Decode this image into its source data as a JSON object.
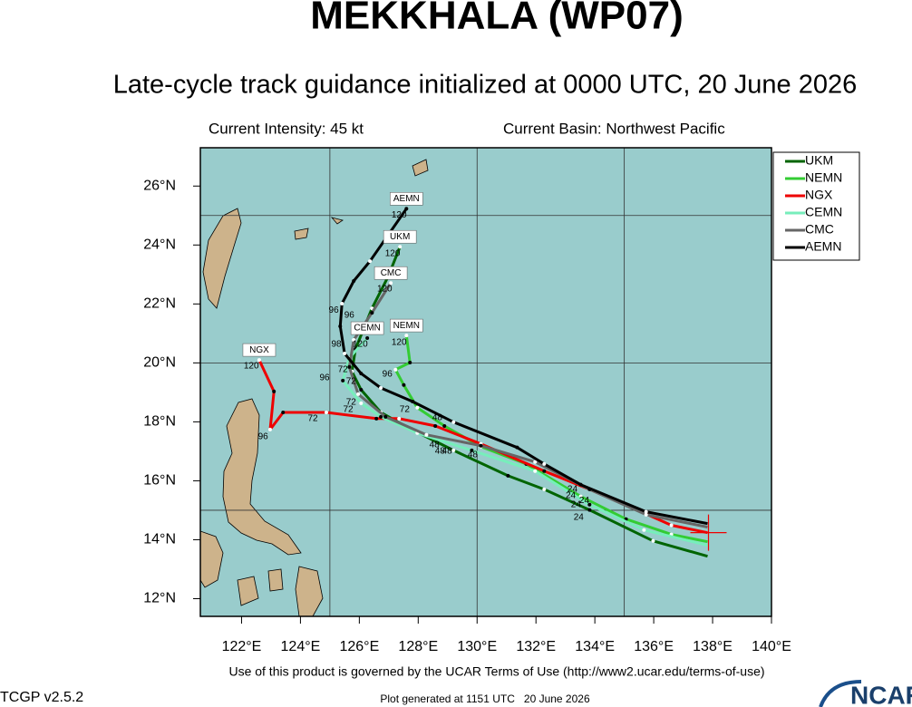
{
  "header": {
    "title": "MEKKHALA (WP07)",
    "subtitle": "Late-cycle track guidance initialized at 0000 UTC, 20 June 2026",
    "intensity": "Current Intensity: 45 kt",
    "basin": "Current Basin: Northwest Pacific"
  },
  "map": {
    "lonlim": [
      120.6,
      140
    ],
    "latlim": [
      11.4,
      27.3
    ],
    "lonticks": [
      {
        "value": 122,
        "label": "122°E"
      },
      {
        "value": 124,
        "label": "124°E"
      },
      {
        "value": 126,
        "label": "126°E"
      },
      {
        "value": 128,
        "label": "128°E"
      },
      {
        "value": 130,
        "label": "130°E"
      },
      {
        "value": 132,
        "label": "132°E"
      },
      {
        "value": 134,
        "label": "134°E"
      },
      {
        "value": 136,
        "label": "136°E"
      },
      {
        "value": 138,
        "label": "138°E"
      },
      {
        "value": 140,
        "label": "140°E"
      }
    ],
    "latticks": [
      {
        "value": 12,
        "label": "12°N"
      },
      {
        "value": 14,
        "label": "14°N"
      },
      {
        "value": 16,
        "label": "16°N"
      },
      {
        "value": 18,
        "label": "18°N"
      },
      {
        "value": 20,
        "label": "20°N"
      },
      {
        "value": 22,
        "label": "22°N"
      },
      {
        "value": 24,
        "label": "24°N"
      },
      {
        "value": 26,
        "label": "26°N"
      }
    ],
    "grid_lon": [
      125,
      130,
      135
    ],
    "grid_lat": [
      15,
      20,
      25
    ],
    "current_position": {
      "lon": 137.86,
      "lat": 14.24,
      "color": "#ee0000"
    },
    "tracks": [
      {
        "name": "UKM",
        "color": "#006400",
        "lon": [
          137.83,
          135.98,
          133.82,
          132.28,
          131.05,
          129.2,
          127.66,
          126.73,
          126.06,
          125.75,
          125.87,
          126.43,
          126.98,
          127.38
        ],
        "lat": [
          13.44,
          13.96,
          15.01,
          15.71,
          16.17,
          17.03,
          17.8,
          18.32,
          19.09,
          19.71,
          20.47,
          21.85,
          22.93,
          23.94
        ]
      },
      {
        "name": "NEMN",
        "color": "#33cc33",
        "lon": [
          137.83,
          136.6,
          135.06,
          133.52,
          131.67,
          130.13,
          128.89,
          127.97,
          127.51,
          127.23,
          127.72,
          127.6
        ],
        "lat": [
          13.93,
          14.18,
          14.7,
          15.47,
          16.57,
          17.16,
          17.86,
          18.48,
          19.25,
          19.77,
          20.01,
          20.93
        ]
      },
      {
        "name": "NGX",
        "color": "#ee0000",
        "lon": [
          137.83,
          136.6,
          135.37,
          133.82,
          132.28,
          130.13,
          128.58,
          127.35,
          126.58,
          124.88,
          123.41,
          122.97,
          123.1,
          122.6
        ],
        "lat": [
          14.24,
          14.49,
          15.04,
          15.71,
          16.33,
          17.25,
          17.86,
          18.11,
          18.11,
          18.32,
          18.32,
          17.74,
          19.03,
          20.1
        ]
      },
      {
        "name": "CEMN",
        "color": "#77eebb",
        "lon": [
          137.83,
          135.67,
          133.82,
          131.97,
          129.82,
          127.97,
          126.73,
          126.06,
          125.44,
          125.66,
          126.27
        ],
        "lat": [
          13.81,
          14.33,
          15.19,
          16.33,
          17.03,
          17.62,
          18.17,
          18.63,
          19.4,
          20.17,
          20.84
        ]
      },
      {
        "name": "CMC",
        "color": "#666666",
        "lon": [
          137.83,
          135.74,
          133.82,
          131.97,
          130.13,
          128.28,
          126.89,
          125.96,
          125.66,
          125.81,
          126.43,
          127.07
        ],
        "lat": [
          14.43,
          14.85,
          15.71,
          16.64,
          17.19,
          17.56,
          18.17,
          18.94,
          19.86,
          20.78,
          21.7,
          22.71
        ]
      },
      {
        "name": "AEMN",
        "color": "#000000",
        "lon": [
          137.83,
          135.74,
          133.52,
          132.28,
          131.36,
          129.2,
          127.81,
          126.73,
          126.06,
          125.5,
          125.35,
          125.41,
          125.81,
          126.36,
          127.6
        ],
        "lat": [
          14.55,
          14.95,
          15.87,
          16.57,
          17.13,
          17.99,
          18.69,
          19.15,
          19.64,
          20.32,
          21.24,
          22.01,
          22.78,
          23.45,
          25.23
        ]
      }
    ],
    "hour_labels": [
      {
        "text": "120",
        "lon": 127.35,
        "lat": 25.02
      },
      {
        "text": "96",
        "lon": 125.13,
        "lat": 21.79
      },
      {
        "text": "120",
        "lon": 127.13,
        "lat": 23.7
      },
      {
        "text": "96",
        "lon": 125.66,
        "lat": 21.61
      },
      {
        "text": "72",
        "lon": 125.44,
        "lat": 19.77
      },
      {
        "text": "120",
        "lon": 122.33,
        "lat": 19.89
      },
      {
        "text": "96",
        "lon": 122.73,
        "lat": 17.5
      },
      {
        "text": "72",
        "lon": 124.42,
        "lat": 18.11
      },
      {
        "text": "120",
        "lon": 126.03,
        "lat": 20.63
      },
      {
        "text": "98",
        "lon": 125.22,
        "lat": 20.63
      },
      {
        "text": "72",
        "lon": 125.72,
        "lat": 18.66
      },
      {
        "text": "72",
        "lon": 125.62,
        "lat": 18.42
      },
      {
        "text": "120",
        "lon": 126.86,
        "lat": 22.5
      },
      {
        "text": "120",
        "lon": 127.35,
        "lat": 20.69
      },
      {
        "text": "96",
        "lon": 126.95,
        "lat": 19.61
      },
      {
        "text": "96",
        "lon": 124.82,
        "lat": 19.49
      },
      {
        "text": "72",
        "lon": 125.72,
        "lat": 19.37
      },
      {
        "text": "72",
        "lon": 127.54,
        "lat": 18.42
      },
      {
        "text": "48",
        "lon": 128.65,
        "lat": 18.14
      },
      {
        "text": "48",
        "lon": 128.55,
        "lat": 17.22
      },
      {
        "text": "48",
        "lon": 128.74,
        "lat": 17.0
      },
      {
        "text": "48",
        "lon": 128.98,
        "lat": 17.0
      },
      {
        "text": "48",
        "lon": 129.85,
        "lat": 16.88
      },
      {
        "text": "24",
        "lon": 133.24,
        "lat": 15.71
      },
      {
        "text": "24",
        "lon": 133.18,
        "lat": 15.5
      },
      {
        "text": "24",
        "lon": 133.64,
        "lat": 15.32
      },
      {
        "text": "24",
        "lon": 133.36,
        "lat": 15.19
      },
      {
        "text": "24",
        "lon": 133.45,
        "lat": 14.76
      }
    ]
  },
  "footer": {
    "terms": "Use of this product is governed by the UCAR Terms of Use (http://www2.ucar.edu/terms-of-use)",
    "version": "TCGP v2.5.2",
    "generated": "Plot generated at 1151 UTC   20 June 2026",
    "logo": "NCAR"
  }
}
